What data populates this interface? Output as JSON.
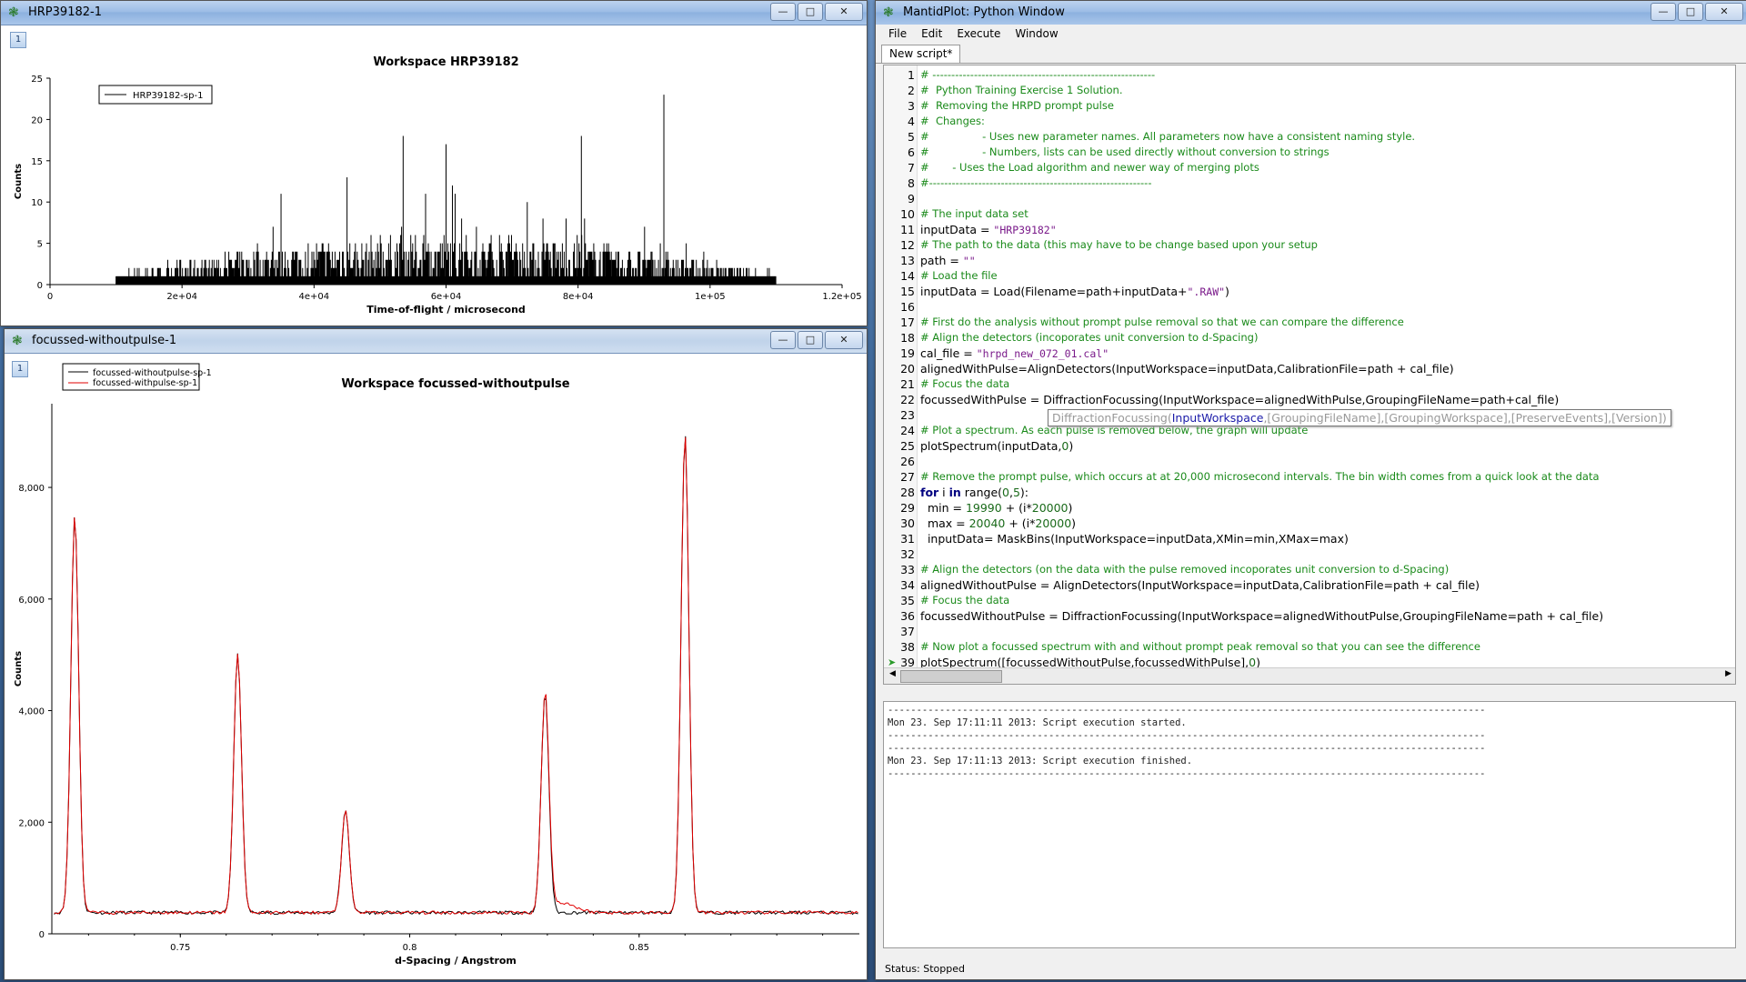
{
  "window_top": {
    "title": "HRP39182-1",
    "index": "1",
    "chart_title": "Workspace HRP39182",
    "legend": "HRP39182-sp-1",
    "xlabel": "Time-of-flight / microsecond",
    "ylabel": "Counts",
    "x_ticks": [
      "0",
      "2e+04",
      "4e+04",
      "6e+04",
      "8e+04",
      "1e+05",
      "1.2e+05"
    ],
    "y_ticks": [
      "0",
      "5",
      "10",
      "15",
      "20",
      "25"
    ]
  },
  "window_bottom": {
    "title": "focussed-withoutpulse-1",
    "index": "1",
    "chart_title": "Workspace focussed-withoutpulse",
    "legend": [
      "focussed-withoutpulse-sp-1",
      "focussed-withpulse-sp-1"
    ],
    "xlabel": "d-Spacing / Angstrom",
    "ylabel": "Counts",
    "x_ticks": [
      "0.75",
      "0.8",
      "0.85"
    ],
    "y_ticks": [
      "0",
      "2,000",
      "4,000",
      "6,000",
      "8,000"
    ]
  },
  "python_window": {
    "title": "MantidPlot: Python Window",
    "menu": [
      "File",
      "Edit",
      "Execute",
      "Window"
    ],
    "tab": "New script*",
    "calltip": {
      "name": "DiffractionFocussing(",
      "current": "InputWorkspace",
      "rest": ",[GroupingFileName],[GroupingWorkspace],[PreserveEvents],[Version])"
    },
    "output": [
      "--------------------------------------------------------------------------------------------------------",
      "Mon 23. Sep 17:11:11 2013: Script execution started.",
      "--------------------------------------------------------------------------------------------------------",
      "--------------------------------------------------------------------------------------------------------",
      "Mon 23. Sep 17:11:13 2013: Script execution finished.",
      "--------------------------------------------------------------------------------------------------------"
    ],
    "status": "Status: Stopped"
  },
  "chart_data": [
    {
      "type": "line",
      "title": "Workspace HRP39182",
      "xlabel": "Time-of-flight / microsecond",
      "ylabel": "Counts",
      "xlim": [
        0,
        120000
      ],
      "ylim": [
        0,
        25
      ],
      "series": [
        {
          "name": "HRP39182-sp-1",
          "color": "#000000"
        }
      ],
      "spikes": [
        [
          35000,
          11
        ],
        [
          45000,
          13
        ],
        [
          53500,
          18
        ],
        [
          60000,
          17
        ],
        [
          80500,
          18
        ],
        [
          93000,
          23
        ]
      ]
    },
    {
      "type": "line",
      "title": "Workspace focussed-withoutpulse",
      "xlabel": "d-Spacing / Angstrom",
      "ylabel": "Counts",
      "xlim": [
        0.722,
        0.898
      ],
      "ylim": [
        0,
        9500
      ],
      "series": [
        {
          "name": "focussed-withoutpulse-sp-1",
          "color": "#000000"
        },
        {
          "name": "focussed-withpulse-sp-1",
          "color": "#e00000"
        }
      ],
      "peaks": [
        [
          0.727,
          7500
        ],
        [
          0.7625,
          5000
        ],
        [
          0.786,
          2200
        ],
        [
          0.8295,
          4300
        ],
        [
          0.86,
          8950
        ]
      ],
      "baseline": 380
    }
  ]
}
